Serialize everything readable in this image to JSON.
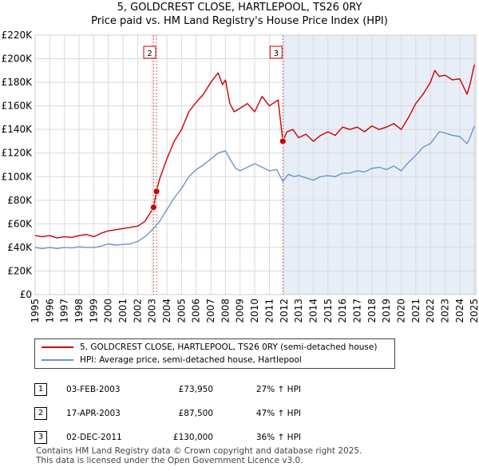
{
  "title": "5, GOLDCREST CLOSE, HARTLEPOOL, TS26 0RY",
  "subtitle": "Price paid vs. HM Land Registry's House Price Index (HPI)",
  "colors": {
    "property": "#cc0000",
    "hpi": "#6a96cc",
    "shade": "#e8eef8",
    "grid": "#d9d9d9"
  },
  "chart_data": {
    "type": "line",
    "title": "5, GOLDCREST CLOSE, HARTLEPOOL, TS26 0RY",
    "subtitle": "Price paid vs. HM Land Registry's House Price Index (HPI)",
    "xlim": [
      1995,
      2025.1
    ],
    "ylim": [
      0,
      220000
    ],
    "x_ticks": [
      "1995",
      "1996",
      "1997",
      "1998",
      "1999",
      "2000",
      "2001",
      "2002",
      "2003",
      "2004",
      "2005",
      "2006",
      "2007",
      "2008",
      "2009",
      "2010",
      "2011",
      "2012",
      "2013",
      "2014",
      "2015",
      "2016",
      "2017",
      "2018",
      "2019",
      "2020",
      "2021",
      "2022",
      "2023",
      "2024",
      "2025"
    ],
    "y_ticks": [
      {
        "value": 0,
        "label": "£0"
      },
      {
        "value": 20000,
        "label": "£20K"
      },
      {
        "value": 40000,
        "label": "£40K"
      },
      {
        "value": 60000,
        "label": "£60K"
      },
      {
        "value": 80000,
        "label": "£80K"
      },
      {
        "value": 100000,
        "label": "£100K"
      },
      {
        "value": 120000,
        "label": "£120K"
      },
      {
        "value": 140000,
        "label": "£140K"
      },
      {
        "value": 160000,
        "label": "£160K"
      },
      {
        "value": 180000,
        "label": "£180K"
      },
      {
        "value": 200000,
        "label": "£200K"
      },
      {
        "value": 220000,
        "label": "£220K"
      }
    ],
    "shaded_region": [
      2011.92,
      2025.1
    ],
    "series": [
      {
        "name": "5, GOLDCREST CLOSE, HARTLEPOOL, TS26 0RY (semi-detached house)",
        "color": "#cc0000",
        "points": [
          [
            1995,
            50000
          ],
          [
            1995.5,
            49000
          ],
          [
            1996,
            50000
          ],
          [
            1996.5,
            48000
          ],
          [
            1997,
            49000
          ],
          [
            1997.5,
            48500
          ],
          [
            1998,
            50000
          ],
          [
            1998.5,
            51000
          ],
          [
            1999,
            49000
          ],
          [
            1999.5,
            52000
          ],
          [
            2000,
            54000
          ],
          [
            2000.5,
            55000
          ],
          [
            2001,
            56000
          ],
          [
            2001.5,
            57000
          ],
          [
            2002,
            58000
          ],
          [
            2002.5,
            62000
          ],
          [
            2003.09,
            73950
          ],
          [
            2003.29,
            87500
          ],
          [
            2003.5,
            98000
          ],
          [
            2004,
            115000
          ],
          [
            2004.5,
            130000
          ],
          [
            2005,
            140000
          ],
          [
            2005.5,
            155000
          ],
          [
            2006,
            163000
          ],
          [
            2006.5,
            170000
          ],
          [
            2007,
            180000
          ],
          [
            2007.5,
            188000
          ],
          [
            2007.8,
            178000
          ],
          [
            2008,
            182000
          ],
          [
            2008.3,
            162000
          ],
          [
            2008.6,
            155000
          ],
          [
            2009,
            158000
          ],
          [
            2009.5,
            162000
          ],
          [
            2010,
            155000
          ],
          [
            2010.5,
            168000
          ],
          [
            2011,
            160000
          ],
          [
            2011.6,
            165000
          ],
          [
            2011.92,
            130000
          ],
          [
            2012.2,
            138000
          ],
          [
            2012.6,
            140000
          ],
          [
            2013,
            133000
          ],
          [
            2013.5,
            136000
          ],
          [
            2014,
            130000
          ],
          [
            2014.5,
            135000
          ],
          [
            2015,
            138000
          ],
          [
            2015.5,
            135000
          ],
          [
            2016,
            142000
          ],
          [
            2016.5,
            140000
          ],
          [
            2017,
            142000
          ],
          [
            2017.5,
            138000
          ],
          [
            2018,
            143000
          ],
          [
            2018.5,
            140000
          ],
          [
            2019,
            142000
          ],
          [
            2019.5,
            145000
          ],
          [
            2020,
            140000
          ],
          [
            2020.5,
            150000
          ],
          [
            2021,
            162000
          ],
          [
            2021.5,
            170000
          ],
          [
            2022,
            180000
          ],
          [
            2022.3,
            190000
          ],
          [
            2022.6,
            185000
          ],
          [
            2023,
            186000
          ],
          [
            2023.5,
            182000
          ],
          [
            2024,
            183000
          ],
          [
            2024.5,
            170000
          ],
          [
            2024.7,
            178000
          ],
          [
            2025,
            195000
          ]
        ]
      },
      {
        "name": "HPI: Average price, semi-detached house, Hartlepool",
        "color": "#6a96cc",
        "points": [
          [
            1995,
            40000
          ],
          [
            1995.5,
            39000
          ],
          [
            1996,
            40000
          ],
          [
            1996.5,
            39000
          ],
          [
            1997,
            40000
          ],
          [
            1997.5,
            39500
          ],
          [
            1998,
            40500
          ],
          [
            1998.5,
            40000
          ],
          [
            1999,
            40000
          ],
          [
            1999.5,
            41000
          ],
          [
            2000,
            43000
          ],
          [
            2000.5,
            42000
          ],
          [
            2001,
            42500
          ],
          [
            2001.5,
            43000
          ],
          [
            2002,
            45000
          ],
          [
            2002.5,
            49000
          ],
          [
            2003,
            55000
          ],
          [
            2003.5,
            62000
          ],
          [
            2004,
            72000
          ],
          [
            2004.5,
            82000
          ],
          [
            2005,
            90000
          ],
          [
            2005.5,
            100000
          ],
          [
            2006,
            106000
          ],
          [
            2006.5,
            110000
          ],
          [
            2007,
            115000
          ],
          [
            2007.5,
            120000
          ],
          [
            2008,
            122000
          ],
          [
            2008.3,
            115000
          ],
          [
            2008.7,
            107000
          ],
          [
            2009,
            105000
          ],
          [
            2009.5,
            108000
          ],
          [
            2010,
            111000
          ],
          [
            2010.5,
            108000
          ],
          [
            2011,
            105000
          ],
          [
            2011.5,
            106000
          ],
          [
            2011.92,
            96000
          ],
          [
            2012.3,
            102000
          ],
          [
            2012.7,
            100000
          ],
          [
            2013,
            101000
          ],
          [
            2013.5,
            99000
          ],
          [
            2014,
            97000
          ],
          [
            2014.5,
            100000
          ],
          [
            2015,
            101000
          ],
          [
            2015.5,
            100000
          ],
          [
            2016,
            103000
          ],
          [
            2016.5,
            103000
          ],
          [
            2017,
            105000
          ],
          [
            2017.5,
            104000
          ],
          [
            2018,
            107000
          ],
          [
            2018.5,
            108000
          ],
          [
            2019,
            106000
          ],
          [
            2019.5,
            109000
          ],
          [
            2020,
            105000
          ],
          [
            2020.5,
            112000
          ],
          [
            2021,
            118000
          ],
          [
            2021.5,
            125000
          ],
          [
            2022,
            128000
          ],
          [
            2022.3,
            133000
          ],
          [
            2022.6,
            138000
          ],
          [
            2023,
            137000
          ],
          [
            2023.5,
            135000
          ],
          [
            2024,
            134000
          ],
          [
            2024.5,
            128000
          ],
          [
            2024.7,
            133000
          ],
          [
            2025,
            143000
          ]
        ]
      }
    ],
    "transactions": [
      {
        "id": "1",
        "x": 2003.09,
        "price": 73950,
        "date": "03-FEB-2003",
        "price_label": "£73,950",
        "hpi": "27% ↑ HPI",
        "show_box": false
      },
      {
        "id": "2",
        "x": 2003.29,
        "price": 87500,
        "date": "17-APR-2003",
        "price_label": "£87,500",
        "hpi": "47% ↑ HPI",
        "show_box": true
      },
      {
        "id": "3",
        "x": 2011.92,
        "price": 130000,
        "date": "02-DEC-2011",
        "price_label": "£130,000",
        "hpi": "36% ↑ HPI",
        "show_box": true
      }
    ]
  },
  "legend": {
    "property_label": "5, GOLDCREST CLOSE, HARTLEPOOL, TS26 0RY (semi-detached house)",
    "hpi_label": "HPI: Average price, semi-detached house, Hartlepool"
  },
  "transactions_table": [
    {
      "num": "1",
      "date": "03-FEB-2003",
      "price": "£73,950",
      "hpi": "27% ↑ HPI"
    },
    {
      "num": "2",
      "date": "17-APR-2003",
      "price": "£87,500",
      "hpi": "47% ↑ HPI"
    },
    {
      "num": "3",
      "date": "02-DEC-2011",
      "price": "£130,000",
      "hpi": "36% ↑ HPI"
    }
  ],
  "footer": {
    "line1": "Contains HM Land Registry data © Crown copyright and database right 2025.",
    "line2": "This data is licensed under the Open Government Licence v3.0."
  }
}
